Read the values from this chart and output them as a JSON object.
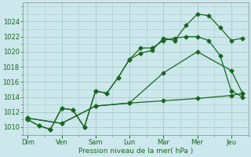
{
  "xlabel": "Pression niveau de la mer( hPa )",
  "bg_color": "#cce8ec",
  "grid_color": "#aacccc",
  "line_color": "#1a6620",
  "xtick_labels": [
    "Dim",
    "Ven",
    "Sam",
    "Lun",
    "Mar",
    "Mer",
    "Jeu"
  ],
  "x_positions": [
    0,
    1,
    2,
    3,
    4,
    5,
    6
  ],
  "ylim": [
    1009.0,
    1026.5
  ],
  "yticks": [
    1010,
    1012,
    1014,
    1016,
    1018,
    1020,
    1022,
    1024
  ],
  "line1_x": [
    0.0,
    0.33,
    0.67,
    1.0,
    1.33,
    1.67,
    2.0,
    2.33,
    2.67,
    3.0,
    3.33,
    3.67,
    4.0,
    4.33,
    4.67,
    5.0,
    5.33,
    5.67,
    6.0,
    6.33
  ],
  "line1_y": [
    1011.0,
    1010.2,
    1009.7,
    1012.5,
    1012.3,
    1010.0,
    1014.8,
    1014.5,
    1016.6,
    1019.0,
    1019.8,
    1020.2,
    1021.8,
    1021.5,
    1023.5,
    1025.0,
    1024.8,
    1023.2,
    1021.5,
    1021.8
  ],
  "line2_x": [
    0.0,
    0.33,
    0.67,
    1.0,
    1.33,
    1.67,
    2.0,
    2.33,
    2.67,
    3.0,
    3.33,
    3.67,
    4.0,
    4.33,
    4.67,
    5.0,
    5.33,
    5.67,
    6.0,
    6.33
  ],
  "line2_y": [
    1011.0,
    1010.2,
    1009.7,
    1012.5,
    1012.3,
    1010.0,
    1014.8,
    1014.5,
    1016.6,
    1019.0,
    1020.5,
    1020.5,
    1021.5,
    1021.8,
    1022.0,
    1022.0,
    1021.5,
    1019.5,
    1014.8,
    1014.0
  ],
  "line3_x": [
    0.0,
    1.0,
    2.0,
    3.0,
    4.0,
    5.0,
    6.0,
    6.33
  ],
  "line3_y": [
    1011.2,
    1010.5,
    1012.8,
    1013.2,
    1013.5,
    1013.8,
    1014.2,
    1014.5
  ],
  "line4_x": [
    0.0,
    1.0,
    2.0,
    3.0,
    4.0,
    5.0,
    6.0,
    6.33
  ],
  "line4_y": [
    1011.2,
    1010.5,
    1012.8,
    1013.2,
    1017.2,
    1020.0,
    1017.5,
    1014.5
  ],
  "xlim": [
    -0.15,
    6.5
  ]
}
